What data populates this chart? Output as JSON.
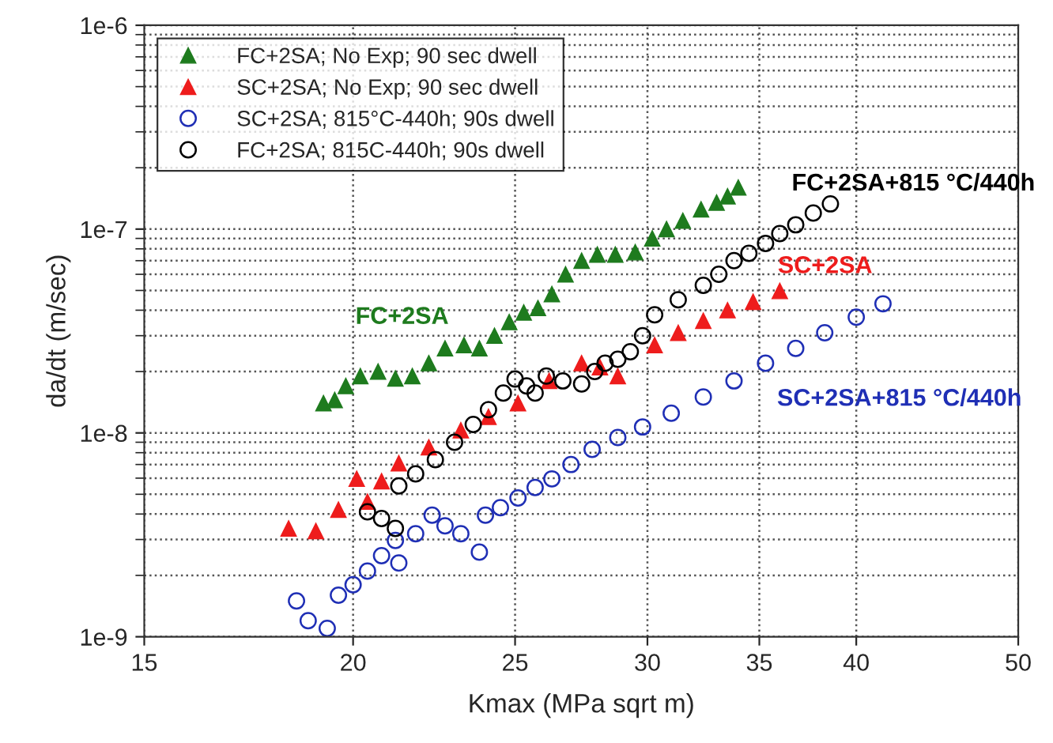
{
  "chart_data": {
    "type": "scatter",
    "xlabel": "Kmax (MPa sqrt m)",
    "ylabel": "da/dt (m/sec)",
    "log": "xy",
    "xlim": [
      15,
      50
    ],
    "xticks": [
      15,
      20,
      25,
      30,
      35,
      40,
      50
    ],
    "ylim": [
      1e-09,
      1e-06
    ],
    "yticks": [
      {
        "value": 1e-09,
        "label": "1e-9"
      },
      {
        "value": 1e-08,
        "label": "1e-8"
      },
      {
        "value": 1e-07,
        "label": "1e-7"
      },
      {
        "value": 1e-06,
        "label": "1e-6"
      }
    ],
    "grid": true,
    "legend": "top left",
    "series": [
      {
        "name": "FC+2SA; No Exp; 90 sec dwell",
        "color": "#1e7b1e",
        "marker": "triangle",
        "x": [
          19.2,
          19.5,
          19.8,
          20.2,
          20.7,
          21.2,
          21.7,
          22.2,
          22.7,
          23.3,
          23.8,
          24.3,
          24.8,
          25.3,
          25.8,
          26.3,
          26.8,
          27.4,
          28.0,
          28.7,
          29.5,
          30.2,
          30.8,
          31.5,
          32.3,
          33.0,
          33.5,
          34.0
        ],
        "values": [
          1.4e-08,
          1.45e-08,
          1.7e-08,
          1.9e-08,
          2e-08,
          1.85e-08,
          1.9e-08,
          2.2e-08,
          2.6e-08,
          2.7e-08,
          2.6e-08,
          3e-08,
          3.5e-08,
          3.9e-08,
          4.1e-08,
          4.8e-08,
          6e-08,
          7e-08,
          7.5e-08,
          7.5e-08,
          7.7e-08,
          9e-08,
          1e-07,
          1.1e-07,
          1.25e-07,
          1.35e-07,
          1.45e-07,
          1.6e-07
        ]
      },
      {
        "name": "SC+2SA; No Exp; 90 sec dwell",
        "color": "#ee1c1c",
        "marker": "triangle",
        "x": [
          18.3,
          19.0,
          19.6,
          20.1,
          20.4,
          20.8,
          21.3,
          22.2,
          23.2,
          24.1,
          25.1,
          26.2,
          27.4,
          28.1,
          28.8,
          30.3,
          31.3,
          32.4,
          33.5,
          34.7,
          36.0
        ],
        "values": [
          3.4e-09,
          3.3e-09,
          4.2e-09,
          5.96e-09,
          4.6e-09,
          5.8e-09,
          7.1e-09,
          8.5e-09,
          1.03e-08,
          1.2e-08,
          1.4e-08,
          1.8e-08,
          2.2e-08,
          2.1e-08,
          1.9e-08,
          2.7e-08,
          3.1e-08,
          3.55e-08,
          4e-08,
          4.4e-08,
          4.97e-08
        ]
      },
      {
        "name": "SC+2SA; 815°C-440h; 90s dwell",
        "color": "#1f2fb5",
        "marker": "circle",
        "x": [
          18.5,
          18.8,
          19.3,
          19.6,
          20.0,
          20.4,
          20.8,
          21.2,
          21.3,
          21.8,
          22.3,
          22.7,
          23.2,
          23.8,
          24.0,
          24.5,
          25.1,
          25.7,
          26.3,
          27.0,
          27.8,
          28.8,
          29.8,
          31.0,
          32.4,
          33.8,
          35.3,
          36.8,
          38.3,
          40.0,
          41.5
        ],
        "values": [
          1.5e-09,
          1.2e-09,
          1.1e-09,
          1.6e-09,
          1.8e-09,
          2.1e-09,
          2.5e-09,
          2.97e-09,
          2.3e-09,
          3.2e-09,
          3.95e-09,
          3.5e-09,
          3.2e-09,
          2.6e-09,
          3.95e-09,
          4.3e-09,
          4.8e-09,
          5.4e-09,
          5.95e-09,
          7e-09,
          8.3e-09,
          9.5e-09,
          1.07e-08,
          1.25e-08,
          1.5e-08,
          1.8e-08,
          2.2e-08,
          2.6e-08,
          3.1e-08,
          3.7e-08,
          4.3e-08
        ]
      },
      {
        "name": "FC+2SA; 815C-440h; 90s dwell",
        "color": "#000000",
        "marker": "circle",
        "x": [
          20.4,
          20.8,
          21.2,
          21.3,
          21.8,
          22.4,
          23.0,
          23.6,
          24.1,
          24.6,
          25.0,
          25.4,
          25.7,
          26.1,
          26.7,
          27.4,
          27.9,
          28.3,
          28.8,
          29.3,
          29.8,
          30.3,
          31.3,
          32.4,
          33.1,
          33.8,
          34.5,
          35.3,
          36.0,
          36.8,
          37.7,
          38.6
        ],
        "values": [
          4.1e-09,
          3.8e-09,
          3.4e-09,
          5.5e-09,
          6.3e-09,
          7.4e-09,
          9e-09,
          1.1e-08,
          1.3e-08,
          1.57e-08,
          1.84e-08,
          1.7e-08,
          1.57e-08,
          1.9e-08,
          1.8e-08,
          1.74e-08,
          2e-08,
          2.2e-08,
          2.3e-08,
          2.5e-08,
          3e-08,
          3.8e-08,
          4.5e-08,
          5.3e-08,
          6e-08,
          7e-08,
          7.6e-08,
          8.5e-08,
          9.5e-08,
          1.05e-07,
          1.2e-07,
          1.33e-07
        ]
      }
    ],
    "annotations": [
      "FC+2SA",
      "SC+2SA",
      "SC+2SA+815 °C/440h",
      "FC+2SA+815 °C/440h"
    ]
  }
}
